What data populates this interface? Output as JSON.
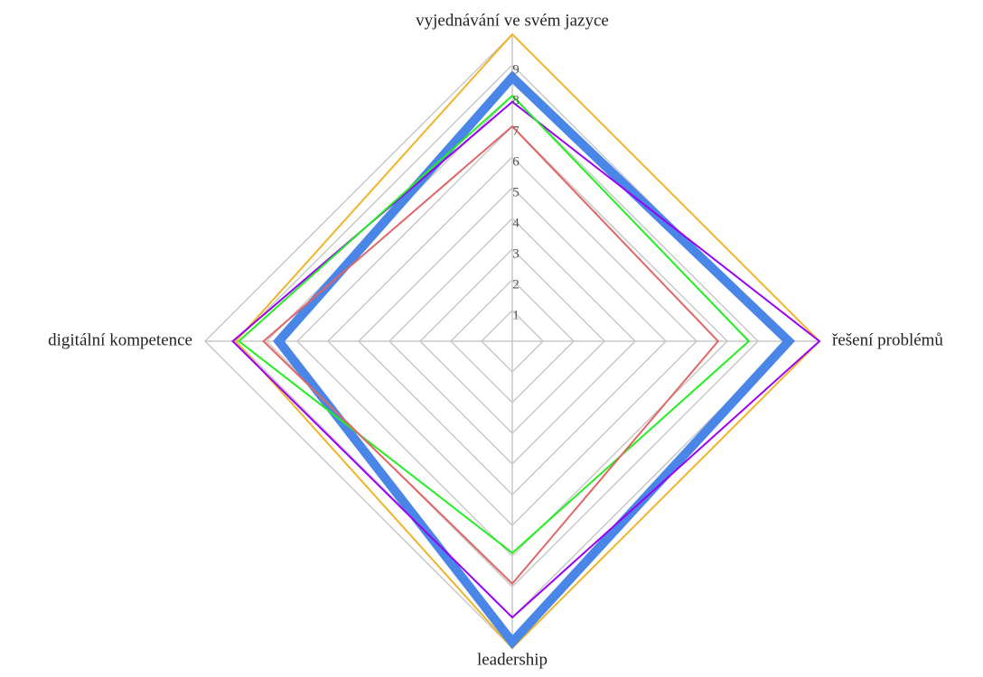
{
  "chart_data": {
    "type": "radar",
    "categories": [
      "vyjednávání ve svém jazyce",
      "řešení problémů",
      "leadership",
      "digitální kompetence"
    ],
    "ylim": [
      0,
      10
    ],
    "yticks": [
      1,
      2,
      3,
      4,
      5,
      6,
      7,
      8,
      9
    ],
    "grid": true,
    "series": [
      {
        "color": "#f0b429",
        "width": 2,
        "values": [
          10,
          10,
          10,
          9
        ]
      },
      {
        "color": "#4a86e8",
        "width": 10,
        "values": [
          8.6,
          9,
          9.8,
          7.6
        ]
      },
      {
        "color": "#9b00f5",
        "width": 2,
        "values": [
          7.8,
          10,
          9,
          9.1
        ]
      },
      {
        "color": "#22ee22",
        "width": 2,
        "values": [
          8,
          7.7,
          6.9,
          8.9
        ]
      },
      {
        "color": "#e06666",
        "width": 2,
        "values": [
          7,
          6.7,
          7.9,
          8.1
        ]
      }
    ]
  }
}
